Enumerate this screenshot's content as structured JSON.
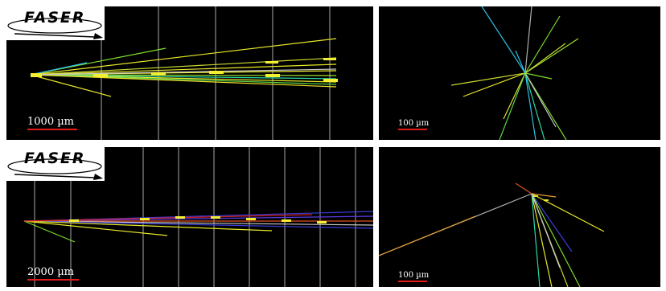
{
  "logo_text": "FASER",
  "scale_bars": {
    "top_left": "1000 µm",
    "top_right": "100 µm",
    "bottom_left": "2000 µm",
    "bottom_right": "100 µm"
  },
  "colors": {
    "background": "#000000",
    "scale_bar": "#e41b1b",
    "planes": "#9a9a9a"
  }
}
